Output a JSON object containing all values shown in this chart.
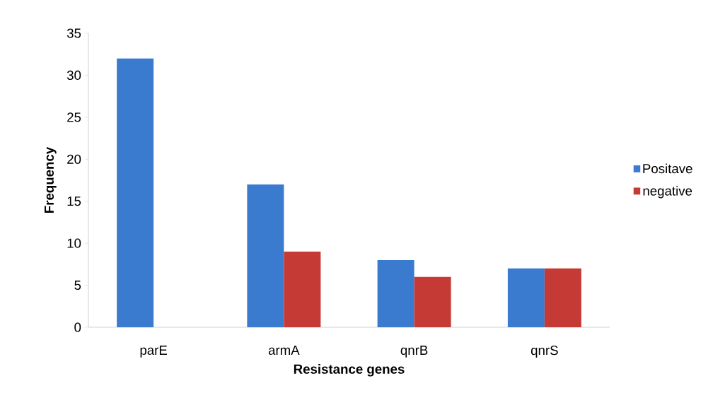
{
  "chart_data": {
    "type": "bar",
    "xlabel": "Resistance genes",
    "ylabel": "Frequency",
    "categories": [
      "parE",
      "armA",
      "qnrB",
      "qnrS"
    ],
    "series": [
      {
        "name": "Positave",
        "color": "#3a7bd0",
        "values": [
          32,
          17,
          8,
          7
        ]
      },
      {
        "name": "negative",
        "color": "#c63a36",
        "values": [
          0,
          9,
          6,
          7
        ]
      }
    ],
    "ylim": [
      0,
      35
    ],
    "yticks": [
      0,
      5,
      10,
      15,
      20,
      25,
      30,
      35
    ],
    "grid": false,
    "legend": "right"
  }
}
